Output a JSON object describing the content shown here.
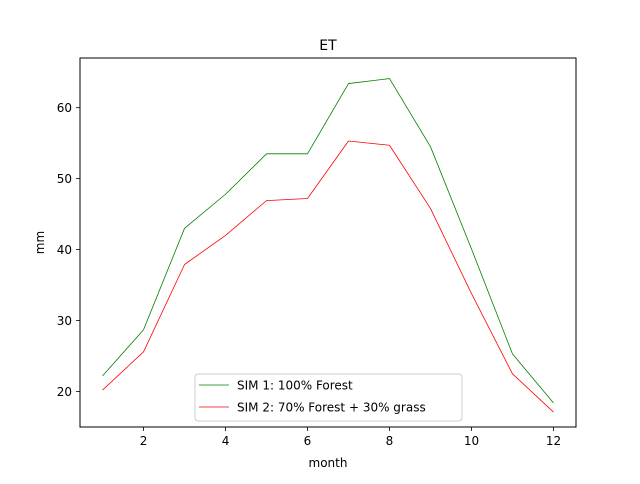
{
  "chart_data": {
    "type": "line",
    "title": "ET",
    "xlabel": "month",
    "ylabel": "mm",
    "xlim": [
      0.45,
      12.55
    ],
    "ylim": [
      15.0,
      67.0
    ],
    "xticks": [
      2,
      4,
      6,
      8,
      10,
      12
    ],
    "yticks": [
      20,
      30,
      40,
      50,
      60
    ],
    "grid": false,
    "legend_position": "lower center",
    "x": [
      1,
      2,
      3,
      4,
      5,
      6,
      7,
      8,
      9,
      10,
      11,
      12
    ],
    "series": [
      {
        "name": "SIM 1: 100% Forest",
        "color": "#008000",
        "values": [
          22.2,
          28.7,
          43.0,
          47.8,
          53.5,
          53.5,
          63.4,
          64.1,
          54.5,
          40.1,
          25.3,
          18.4
        ]
      },
      {
        "name": "SIM 2: 70% Forest + 30% grass",
        "color": "#ff0000",
        "values": [
          20.2,
          25.6,
          37.9,
          42.0,
          46.9,
          47.2,
          55.3,
          54.7,
          45.8,
          33.8,
          22.5,
          17.1
        ]
      }
    ]
  }
}
